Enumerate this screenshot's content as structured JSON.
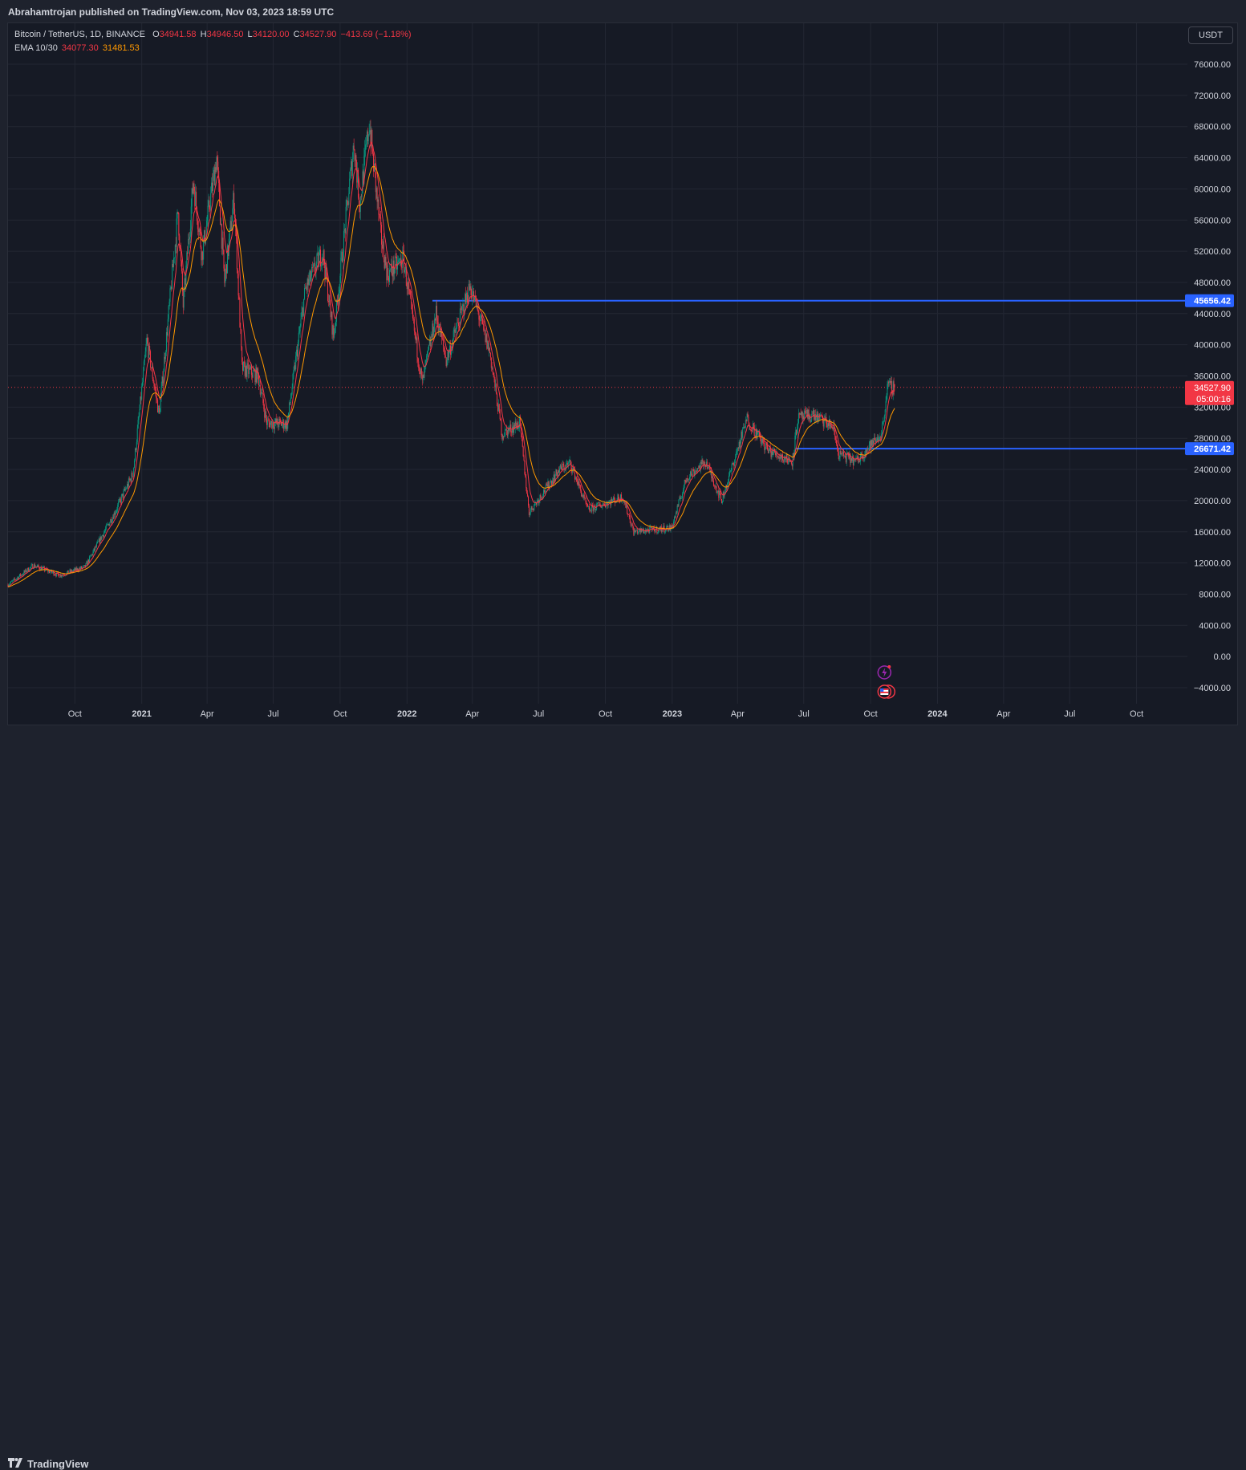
{
  "publisher": "Abrahamtrojan published on TradingView.com, Nov 03, 2023 18:59 UTC",
  "legend": {
    "symbol": "Bitcoin / TetherUS, 1D, BINANCE",
    "o_label": "O",
    "o_value": "34941.58",
    "h_label": "H",
    "h_value": "34946.50",
    "l_label": "L",
    "l_value": "34120.00",
    "c_label": "C",
    "c_value": "34527.90",
    "change": "−413.69 (−1.18%)",
    "ema_label": "EMA 10/30",
    "ema_fast": "34077.30",
    "ema_slow": "31481.53"
  },
  "currency_button": "USDT",
  "footer": {
    "brand": "TradingView",
    "logo_icon": "tradingview-logo-icon"
  },
  "colors": {
    "up": "#089981",
    "down": "#f23645",
    "ema_fast": "#f23645",
    "ema_slow": "#ff9800",
    "hline": "#2962ff",
    "background": "#161a25",
    "grid": "#232733",
    "axis_text": "#d1d4dc"
  },
  "chart_data": {
    "type": "candlestick",
    "symbol": "Bitcoin / TetherUS",
    "interval": "1D",
    "exchange": "BINANCE",
    "y_ticks": [
      76000,
      72000,
      68000,
      64000,
      60000,
      56000,
      52000,
      48000,
      44000,
      40000,
      36000,
      32000,
      28000,
      24000,
      20000,
      16000,
      12000,
      8000,
      4000,
      0,
      -4000
    ],
    "y_tick_labels": [
      "76000.00",
      "72000.00",
      "68000.00",
      "64000.00",
      "60000.00",
      "56000.00",
      "52000.00",
      "48000.00",
      "44000.00",
      "40000.00",
      "36000.00",
      "32000.00",
      "28000.00",
      "24000.00",
      "20000.00",
      "16000.00",
      "12000.00",
      "8000.00",
      "4000.00",
      "0.00",
      "−4000.00"
    ],
    "ylim": [
      -6000,
      80000
    ],
    "x_ticks": [
      {
        "date": "2020-10-01",
        "label": "Oct"
      },
      {
        "date": "2021-01-01",
        "label": "2021"
      },
      {
        "date": "2021-04-01",
        "label": "Apr"
      },
      {
        "date": "2021-07-01",
        "label": "Jul"
      },
      {
        "date": "2021-10-01",
        "label": "Oct"
      },
      {
        "date": "2022-01-01",
        "label": "2022"
      },
      {
        "date": "2022-04-01",
        "label": "Apr"
      },
      {
        "date": "2022-07-01",
        "label": "Jul"
      },
      {
        "date": "2022-10-01",
        "label": "Oct"
      },
      {
        "date": "2023-01-01",
        "label": "2023"
      },
      {
        "date": "2023-04-01",
        "label": "Apr"
      },
      {
        "date": "2023-07-01",
        "label": "Jul"
      },
      {
        "date": "2023-10-01",
        "label": "Oct"
      },
      {
        "date": "2024-01-01",
        "label": "2024"
      },
      {
        "date": "2024-04-01",
        "label": "Apr"
      },
      {
        "date": "2024-07-01",
        "label": "Jul"
      },
      {
        "date": "2024-10-01",
        "label": "Oct"
      }
    ],
    "xlim": [
      "2020-07-01",
      "2024-12-10"
    ],
    "price_path": [
      [
        "2020-07-01",
        9200
      ],
      [
        "2020-08-05",
        11700
      ],
      [
        "2020-09-10",
        10400
      ],
      [
        "2020-10-15",
        11500
      ],
      [
        "2020-11-25",
        18500
      ],
      [
        "2020-12-20",
        23500
      ],
      [
        "2021-01-08",
        40500
      ],
      [
        "2021-01-25",
        31000
      ],
      [
        "2021-02-20",
        57000
      ],
      [
        "2021-02-27",
        45000
      ],
      [
        "2021-03-13",
        61000
      ],
      [
        "2021-03-25",
        51500
      ],
      [
        "2021-04-14",
        64000
      ],
      [
        "2021-04-25",
        48000
      ],
      [
        "2021-05-08",
        59000
      ],
      [
        "2021-05-19",
        37000
      ],
      [
        "2021-06-10",
        36000
      ],
      [
        "2021-06-22",
        30000
      ],
      [
        "2021-07-20",
        29800
      ],
      [
        "2021-08-14",
        47000
      ],
      [
        "2021-09-07",
        52000
      ],
      [
        "2021-09-22",
        41000
      ],
      [
        "2021-10-20",
        66000
      ],
      [
        "2021-10-28",
        58000
      ],
      [
        "2021-11-10",
        68500
      ],
      [
        "2021-11-26",
        54000
      ],
      [
        "2021-12-05",
        49000
      ],
      [
        "2021-12-27",
        51000
      ],
      [
        "2022-01-22",
        35000
      ],
      [
        "2022-02-10",
        44000
      ],
      [
        "2022-02-24",
        38000
      ],
      [
        "2022-03-29",
        47500
      ],
      [
        "2022-04-25",
        39000
      ],
      [
        "2022-05-12",
        28500
      ],
      [
        "2022-06-05",
        30000
      ],
      [
        "2022-06-18",
        18500
      ],
      [
        "2022-07-30",
        24000
      ],
      [
        "2022-08-14",
        24800
      ],
      [
        "2022-09-07",
        18800
      ],
      [
        "2022-10-25",
        20500
      ],
      [
        "2022-11-09",
        16000
      ],
      [
        "2022-12-31",
        16500
      ],
      [
        "2023-01-21",
        23000
      ],
      [
        "2023-02-16",
        25000
      ],
      [
        "2023-03-10",
        20000
      ],
      [
        "2023-04-14",
        30500
      ],
      [
        "2023-05-12",
        26500
      ],
      [
        "2023-06-15",
        25000
      ],
      [
        "2023-06-23",
        30500
      ],
      [
        "2023-07-14",
        31000
      ],
      [
        "2023-08-10",
        29500
      ],
      [
        "2023-08-18",
        26000
      ],
      [
        "2023-09-11",
        25000
      ],
      [
        "2023-09-30",
        27000
      ],
      [
        "2023-10-16",
        28500
      ],
      [
        "2023-10-24",
        34500
      ],
      [
        "2023-11-03",
        34528
      ]
    ],
    "ema_fast": {
      "name": "EMA 10",
      "last": 34077.3
    },
    "ema_slow": {
      "name": "EMA 30",
      "last": 31481.53
    },
    "horizontal_lines": [
      {
        "price": 45656.42,
        "label": "45656.42",
        "start": "2022-02-05"
      },
      {
        "price": 26671.42,
        "label": "26671.42",
        "start": "2023-06-20"
      }
    ],
    "last_price": {
      "price": 34527.9,
      "label": "34527.90",
      "countdown": "05:00:16"
    }
  }
}
